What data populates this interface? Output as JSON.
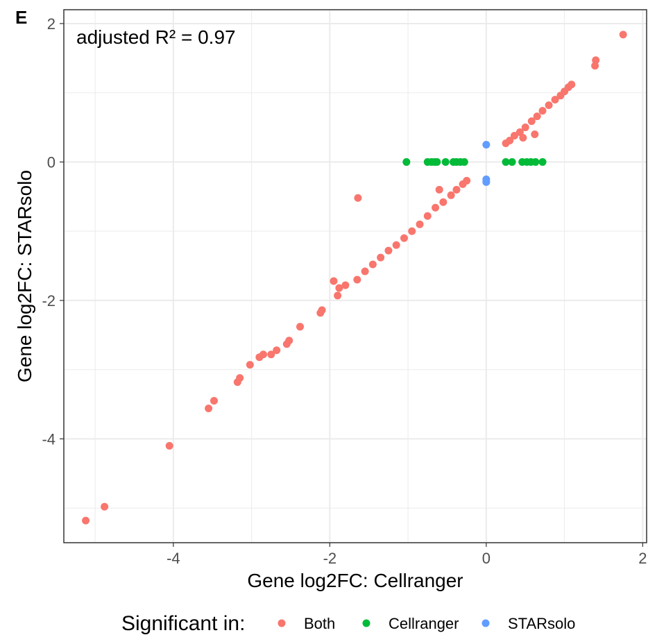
{
  "panel_label": "E",
  "colors": {
    "Both": "#F8766D",
    "Cellranger": "#00BA38",
    "STARsolo": "#619CFF",
    "grid": "#EBEBEB",
    "axis_text": "#4D4D4D"
  },
  "chart_data": {
    "type": "scatter",
    "title": "",
    "xlabel": "Gene log2FC: Cellranger",
    "ylabel": "Gene log2FC: STARsolo",
    "xlim": [
      -5.4,
      2.05
    ],
    "ylim": [
      -5.5,
      2.2
    ],
    "x_ticks": [
      -4,
      -2,
      0,
      2
    ],
    "y_ticks": [
      -4,
      -2,
      0,
      2
    ],
    "grid": true,
    "annotation": "adjusted R² = 0.97",
    "legend": {
      "title": "Significant in:",
      "position": "bottom",
      "entries": [
        "Both",
        "Cellranger",
        "STARsolo"
      ]
    },
    "series": [
      {
        "name": "Both",
        "points": [
          [
            1.75,
            1.84
          ],
          [
            1.4,
            1.47
          ],
          [
            1.39,
            1.39
          ],
          [
            1.09,
            1.12
          ],
          [
            1.05,
            1.08
          ],
          [
            1.0,
            1.02
          ],
          [
            0.95,
            0.96
          ],
          [
            0.88,
            0.9
          ],
          [
            0.8,
            0.82
          ],
          [
            0.72,
            0.74
          ],
          [
            0.65,
            0.66
          ],
          [
            0.58,
            0.59
          ],
          [
            0.5,
            0.5
          ],
          [
            0.43,
            0.43
          ],
          [
            0.36,
            0.38
          ],
          [
            0.3,
            0.31
          ],
          [
            0.25,
            0.27
          ],
          [
            0.62,
            0.4
          ],
          [
            0.47,
            0.35
          ],
          [
            -0.25,
            -0.27
          ],
          [
            -0.3,
            -0.32
          ],
          [
            -0.38,
            -0.4
          ],
          [
            -0.45,
            -0.48
          ],
          [
            -0.55,
            -0.58
          ],
          [
            -0.65,
            -0.66
          ],
          [
            -0.75,
            -0.78
          ],
          [
            -0.85,
            -0.9
          ],
          [
            -0.95,
            -1.0
          ],
          [
            -1.05,
            -1.1
          ],
          [
            -1.15,
            -1.2
          ],
          [
            -1.25,
            -1.28
          ],
          [
            -1.35,
            -1.38
          ],
          [
            -1.45,
            -1.48
          ],
          [
            -1.55,
            -1.58
          ],
          [
            -1.65,
            -1.7
          ],
          [
            -0.6,
            -0.4
          ],
          [
            -1.64,
            -0.52
          ],
          [
            -1.95,
            -1.72
          ],
          [
            -1.8,
            -1.78
          ],
          [
            -1.88,
            -1.82
          ],
          [
            -1.9,
            -1.93
          ],
          [
            -2.1,
            -2.14
          ],
          [
            -2.12,
            -2.18
          ],
          [
            -2.38,
            -2.38
          ],
          [
            -2.52,
            -2.58
          ],
          [
            -2.55,
            -2.63
          ],
          [
            -2.68,
            -2.72
          ],
          [
            -2.75,
            -2.78
          ],
          [
            -2.85,
            -2.78
          ],
          [
            -2.9,
            -2.82
          ],
          [
            -3.02,
            -2.93
          ],
          [
            -3.15,
            -3.12
          ],
          [
            -3.18,
            -3.18
          ],
          [
            -3.48,
            -3.45
          ],
          [
            -3.55,
            -3.56
          ],
          [
            -4.05,
            -4.1
          ],
          [
            -4.88,
            -4.98
          ],
          [
            -5.12,
            -5.18
          ]
        ]
      },
      {
        "name": "Cellranger",
        "points": [
          [
            -1.02,
            0.0
          ],
          [
            -0.75,
            0.0
          ],
          [
            -0.7,
            0.0
          ],
          [
            -0.66,
            0.0
          ],
          [
            -0.63,
            0.0
          ],
          [
            -0.52,
            0.0
          ],
          [
            -0.42,
            0.0
          ],
          [
            -0.38,
            0.0
          ],
          [
            -0.33,
            0.0
          ],
          [
            -0.28,
            0.0
          ],
          [
            0.25,
            0.0
          ],
          [
            0.33,
            0.0
          ],
          [
            0.46,
            0.0
          ],
          [
            0.52,
            0.0
          ],
          [
            0.57,
            0.0
          ],
          [
            0.63,
            0.0
          ],
          [
            0.72,
            0.0
          ]
        ]
      },
      {
        "name": "STARsolo",
        "points": [
          [
            0.0,
            0.25
          ],
          [
            0.0,
            -0.25
          ],
          [
            0.0,
            -0.29
          ]
        ]
      }
    ]
  }
}
